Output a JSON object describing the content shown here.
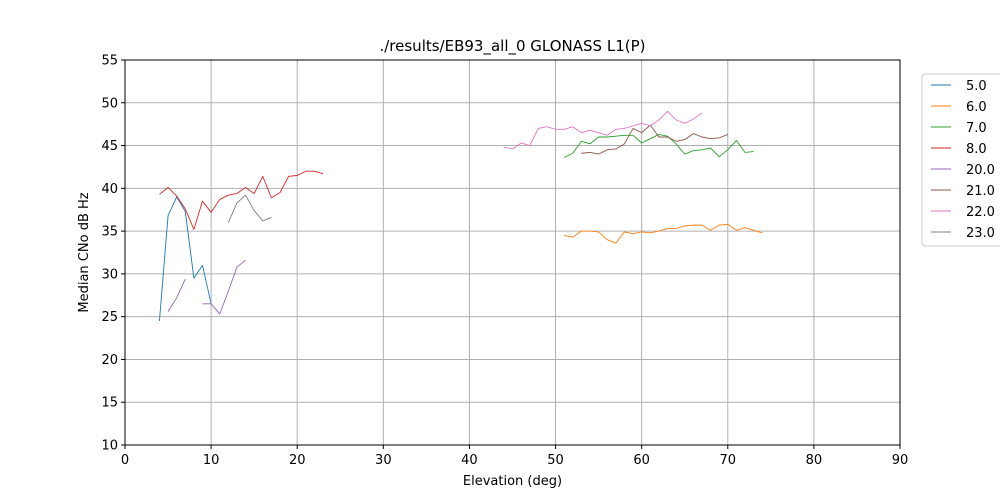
{
  "chart_data": {
    "type": "line",
    "title": "./results/EB93_all_0 GLONASS L1(P)",
    "xlabel": "Elevation (deg)",
    "ylabel": "Median CNo dB Hz",
    "xlim": [
      0,
      90
    ],
    "ylim": [
      10,
      55
    ],
    "xticks": [
      0,
      10,
      20,
      30,
      40,
      50,
      60,
      70,
      80,
      90
    ],
    "yticks": [
      10,
      15,
      20,
      25,
      30,
      35,
      40,
      45,
      50,
      55
    ],
    "grid": true,
    "legend_position": "outside-right",
    "series": [
      {
        "name": "5.0",
        "color": "#1f77b4",
        "x": [
          4,
          5,
          6,
          7,
          8,
          9,
          10
        ],
        "y": [
          24.5,
          36.8,
          39.0,
          37.3,
          29.5,
          31.0,
          26.5
        ]
      },
      {
        "name": "6.0",
        "color": "#ff7f0e",
        "x": [
          51,
          52,
          53,
          54,
          55,
          56,
          57,
          58,
          59,
          60,
          61,
          62,
          63,
          64,
          65,
          66,
          67,
          68,
          69,
          70,
          71,
          72,
          73,
          74
        ],
        "y": [
          34.5,
          34.3,
          35.0,
          35.0,
          34.9,
          34.0,
          33.6,
          34.9,
          34.7,
          34.9,
          34.8,
          35.0,
          35.3,
          35.3,
          35.6,
          35.7,
          35.7,
          35.1,
          35.7,
          35.8,
          35.1,
          35.4,
          35.1,
          34.8
        ]
      },
      {
        "name": "7.0",
        "color": "#2ca02c",
        "x": [
          51,
          52,
          53,
          54,
          55,
          56,
          57,
          58,
          59,
          60,
          61,
          62,
          63,
          64,
          65,
          66,
          67,
          68,
          69,
          70,
          71,
          72,
          73
        ],
        "y": [
          43.6,
          44.1,
          45.5,
          45.2,
          46.0,
          46.0,
          46.1,
          46.2,
          46.2,
          45.3,
          45.8,
          46.3,
          46.1,
          45.2,
          44.0,
          44.4,
          44.5,
          44.7,
          43.7,
          44.5,
          45.6,
          44.2,
          44.3
        ]
      },
      {
        "name": "8.0",
        "color": "#d62728",
        "x": [
          4,
          5,
          6,
          7,
          8,
          9,
          10,
          11,
          12,
          13,
          14,
          15,
          16,
          17,
          18,
          19,
          20,
          21,
          22,
          23
        ],
        "y": [
          39.3,
          40.1,
          39.1,
          37.6,
          35.2,
          38.5,
          37.2,
          38.7,
          39.2,
          39.4,
          40.1,
          39.4,
          41.4,
          38.9,
          39.5,
          41.4,
          41.5,
          42.0,
          42.0,
          41.7
        ]
      },
      {
        "name": "20.0",
        "color": "#9467bd",
        "x": [
          5,
          6,
          7,
          null,
          9,
          10,
          11,
          12,
          13,
          14
        ],
        "y": [
          25.6,
          27.2,
          29.4,
          null,
          26.5,
          26.5,
          25.3,
          28.0,
          30.8,
          31.6
        ]
      },
      {
        "name": "21.0",
        "color": "#8c564b",
        "x": [
          53,
          54,
          55,
          56,
          57,
          58,
          59,
          60,
          61,
          62,
          63,
          64,
          65,
          66,
          67,
          68,
          69,
          70
        ],
        "y": [
          44.1,
          44.2,
          44.0,
          44.5,
          44.6,
          45.2,
          47.0,
          46.5,
          47.4,
          46.0,
          46.0,
          45.5,
          45.7,
          46.4,
          46.0,
          45.8,
          45.9,
          46.3
        ]
      },
      {
        "name": "22.0",
        "color": "#e377c2",
        "x": [
          44,
          45,
          46,
          47,
          48,
          49,
          50,
          51,
          52,
          53,
          54,
          55,
          56,
          57,
          58,
          59,
          60,
          61,
          62,
          63,
          64,
          65,
          66,
          67
        ],
        "y": [
          44.8,
          44.6,
          45.3,
          45.0,
          47.0,
          47.2,
          46.9,
          46.9,
          47.2,
          46.5,
          46.8,
          46.5,
          46.2,
          46.9,
          47.0,
          47.3,
          47.6,
          47.3,
          48.0,
          49.0,
          48.0,
          47.6,
          48.1,
          48.8
        ]
      },
      {
        "name": "23.0",
        "color": "#7f7f7f",
        "x": [
          12,
          13,
          14,
          15,
          16,
          17
        ],
        "y": [
          36.0,
          38.3,
          39.2,
          37.4,
          36.2,
          36.6
        ]
      }
    ]
  }
}
